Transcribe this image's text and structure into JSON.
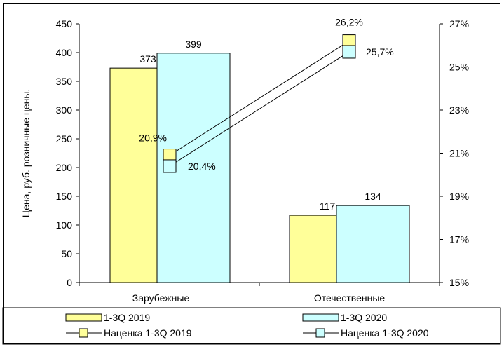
{
  "chart_data": {
    "type": "bar",
    "categories": [
      "Зарубежные",
      "Отечественные"
    ],
    "ylabel": "Цена, руб. розничные цены.",
    "ylim": [
      0,
      450
    ],
    "yticks": [
      "0",
      "50",
      "100",
      "150",
      "200",
      "250",
      "300",
      "350",
      "400",
      "450"
    ],
    "y2lim": [
      15,
      27
    ],
    "y2ticks": [
      "15%",
      "17%",
      "19%",
      "21%",
      "23%",
      "25%",
      "27%"
    ],
    "series": [
      {
        "name": "1-3Q 2019",
        "values": [
          373,
          117
        ],
        "labels": [
          "373",
          "117"
        ],
        "color": "#ffff99"
      },
      {
        "name": "1-3Q 2020",
        "values": [
          399,
          134
        ],
        "labels": [
          "399",
          "134"
        ],
        "color": "#ccffff"
      }
    ],
    "line_series": [
      {
        "name": "Наценка 1-3Q 2019",
        "values": [
          20.9,
          26.2
        ],
        "labels": [
          "20,9%",
          "26,2%"
        ],
        "color": "#ffff99"
      },
      {
        "name": "Наценка 1-3Q 2020",
        "values": [
          20.4,
          25.7
        ],
        "labels": [
          "20,4%",
          "25,7%"
        ],
        "color": "#ccffff"
      }
    ],
    "grid": false,
    "legend": "bottom"
  }
}
